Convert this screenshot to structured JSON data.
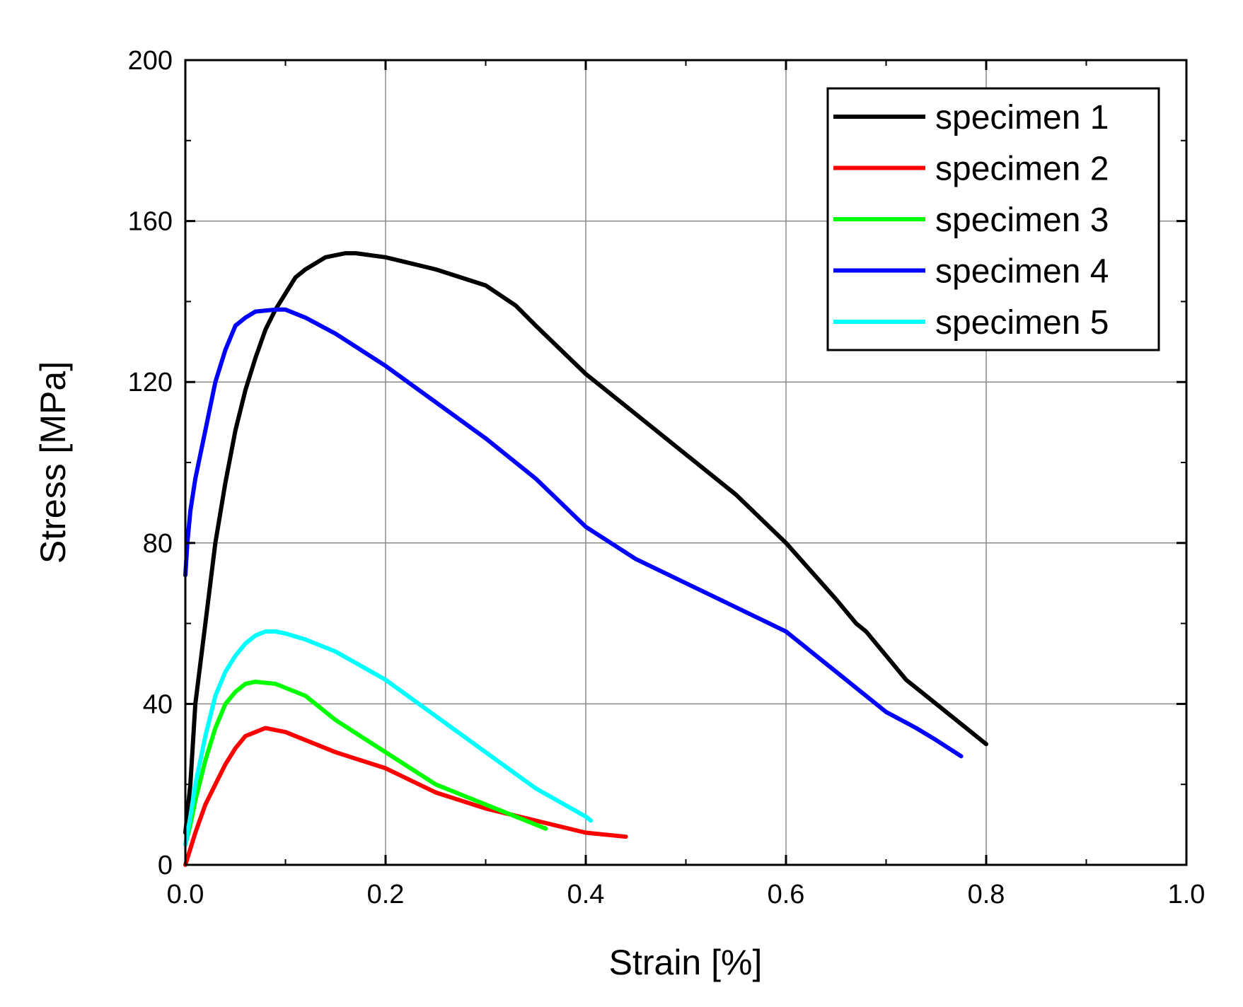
{
  "chart_data": {
    "type": "line",
    "title": "",
    "xlabel": "Strain [%]",
    "ylabel": "Stress [MPa]",
    "xlim": [
      0.0,
      1.0
    ],
    "ylim": [
      0,
      200
    ],
    "xticks": [
      "0.0",
      "0.2",
      "0.4",
      "0.6",
      "0.8",
      "1.0"
    ],
    "yticks": [
      "0",
      "40",
      "80",
      "120",
      "160",
      "200"
    ],
    "grid": true,
    "legend_position": "top-right",
    "series": [
      {
        "name": "specimen 1",
        "color": "#000000",
        "x": [
          0.0,
          0.005,
          0.01,
          0.02,
          0.03,
          0.04,
          0.05,
          0.06,
          0.07,
          0.08,
          0.09,
          0.1,
          0.11,
          0.12,
          0.14,
          0.16,
          0.17,
          0.2,
          0.25,
          0.3,
          0.33,
          0.35,
          0.4,
          0.45,
          0.5,
          0.55,
          0.6,
          0.65,
          0.67,
          0.68,
          0.72,
          0.75,
          0.78,
          0.8
        ],
        "y": [
          8,
          20,
          40,
          60,
          80,
          95,
          108,
          118,
          126,
          133,
          138,
          142,
          146,
          148,
          151,
          152,
          152,
          151,
          148,
          144,
          139,
          134,
          122,
          112,
          102,
          92,
          80,
          66,
          60,
          58,
          46,
          40,
          34,
          30
        ]
      },
      {
        "name": "specimen 2",
        "color": "#ff0000",
        "x": [
          0.0,
          0.005,
          0.01,
          0.02,
          0.03,
          0.04,
          0.05,
          0.06,
          0.07,
          0.08,
          0.1,
          0.15,
          0.2,
          0.25,
          0.3,
          0.35,
          0.4,
          0.44
        ],
        "y": [
          0,
          4,
          8,
          15,
          20,
          25,
          29,
          32,
          33,
          34,
          33,
          28,
          24,
          18,
          14,
          11,
          8,
          7
        ]
      },
      {
        "name": "specimen 3",
        "color": "#00ff00",
        "x": [
          0.0,
          0.005,
          0.01,
          0.02,
          0.03,
          0.04,
          0.05,
          0.06,
          0.07,
          0.09,
          0.12,
          0.15,
          0.2,
          0.25,
          0.3,
          0.33,
          0.36
        ],
        "y": [
          5,
          10,
          16,
          26,
          34,
          40,
          43,
          45,
          45.5,
          45,
          42,
          36,
          28,
          20,
          15,
          12,
          9
        ]
      },
      {
        "name": "specimen 4",
        "color": "#0000ff",
        "x": [
          0.0,
          0.002,
          0.005,
          0.01,
          0.02,
          0.03,
          0.04,
          0.05,
          0.06,
          0.07,
          0.09,
          0.1,
          0.12,
          0.15,
          0.2,
          0.25,
          0.3,
          0.35,
          0.4,
          0.45,
          0.5,
          0.55,
          0.6,
          0.65,
          0.7,
          0.73,
          0.75,
          0.775
        ],
        "y": [
          72,
          80,
          88,
          96,
          108,
          120,
          128,
          134,
          136,
          137.5,
          138,
          138,
          136,
          132,
          124,
          115,
          106,
          96,
          84,
          76,
          70,
          64,
          58,
          48,
          38,
          34,
          31,
          27
        ]
      },
      {
        "name": "specimen 5",
        "color": "#00ffff",
        "x": [
          0.0,
          0.005,
          0.01,
          0.02,
          0.03,
          0.04,
          0.05,
          0.06,
          0.07,
          0.08,
          0.09,
          0.1,
          0.12,
          0.15,
          0.2,
          0.25,
          0.3,
          0.35,
          0.4,
          0.405
        ],
        "y": [
          5,
          12,
          20,
          32,
          42,
          48,
          52,
          55,
          57,
          58,
          58,
          57.5,
          56,
          53,
          46,
          37,
          28,
          19,
          12,
          11
        ]
      }
    ]
  }
}
